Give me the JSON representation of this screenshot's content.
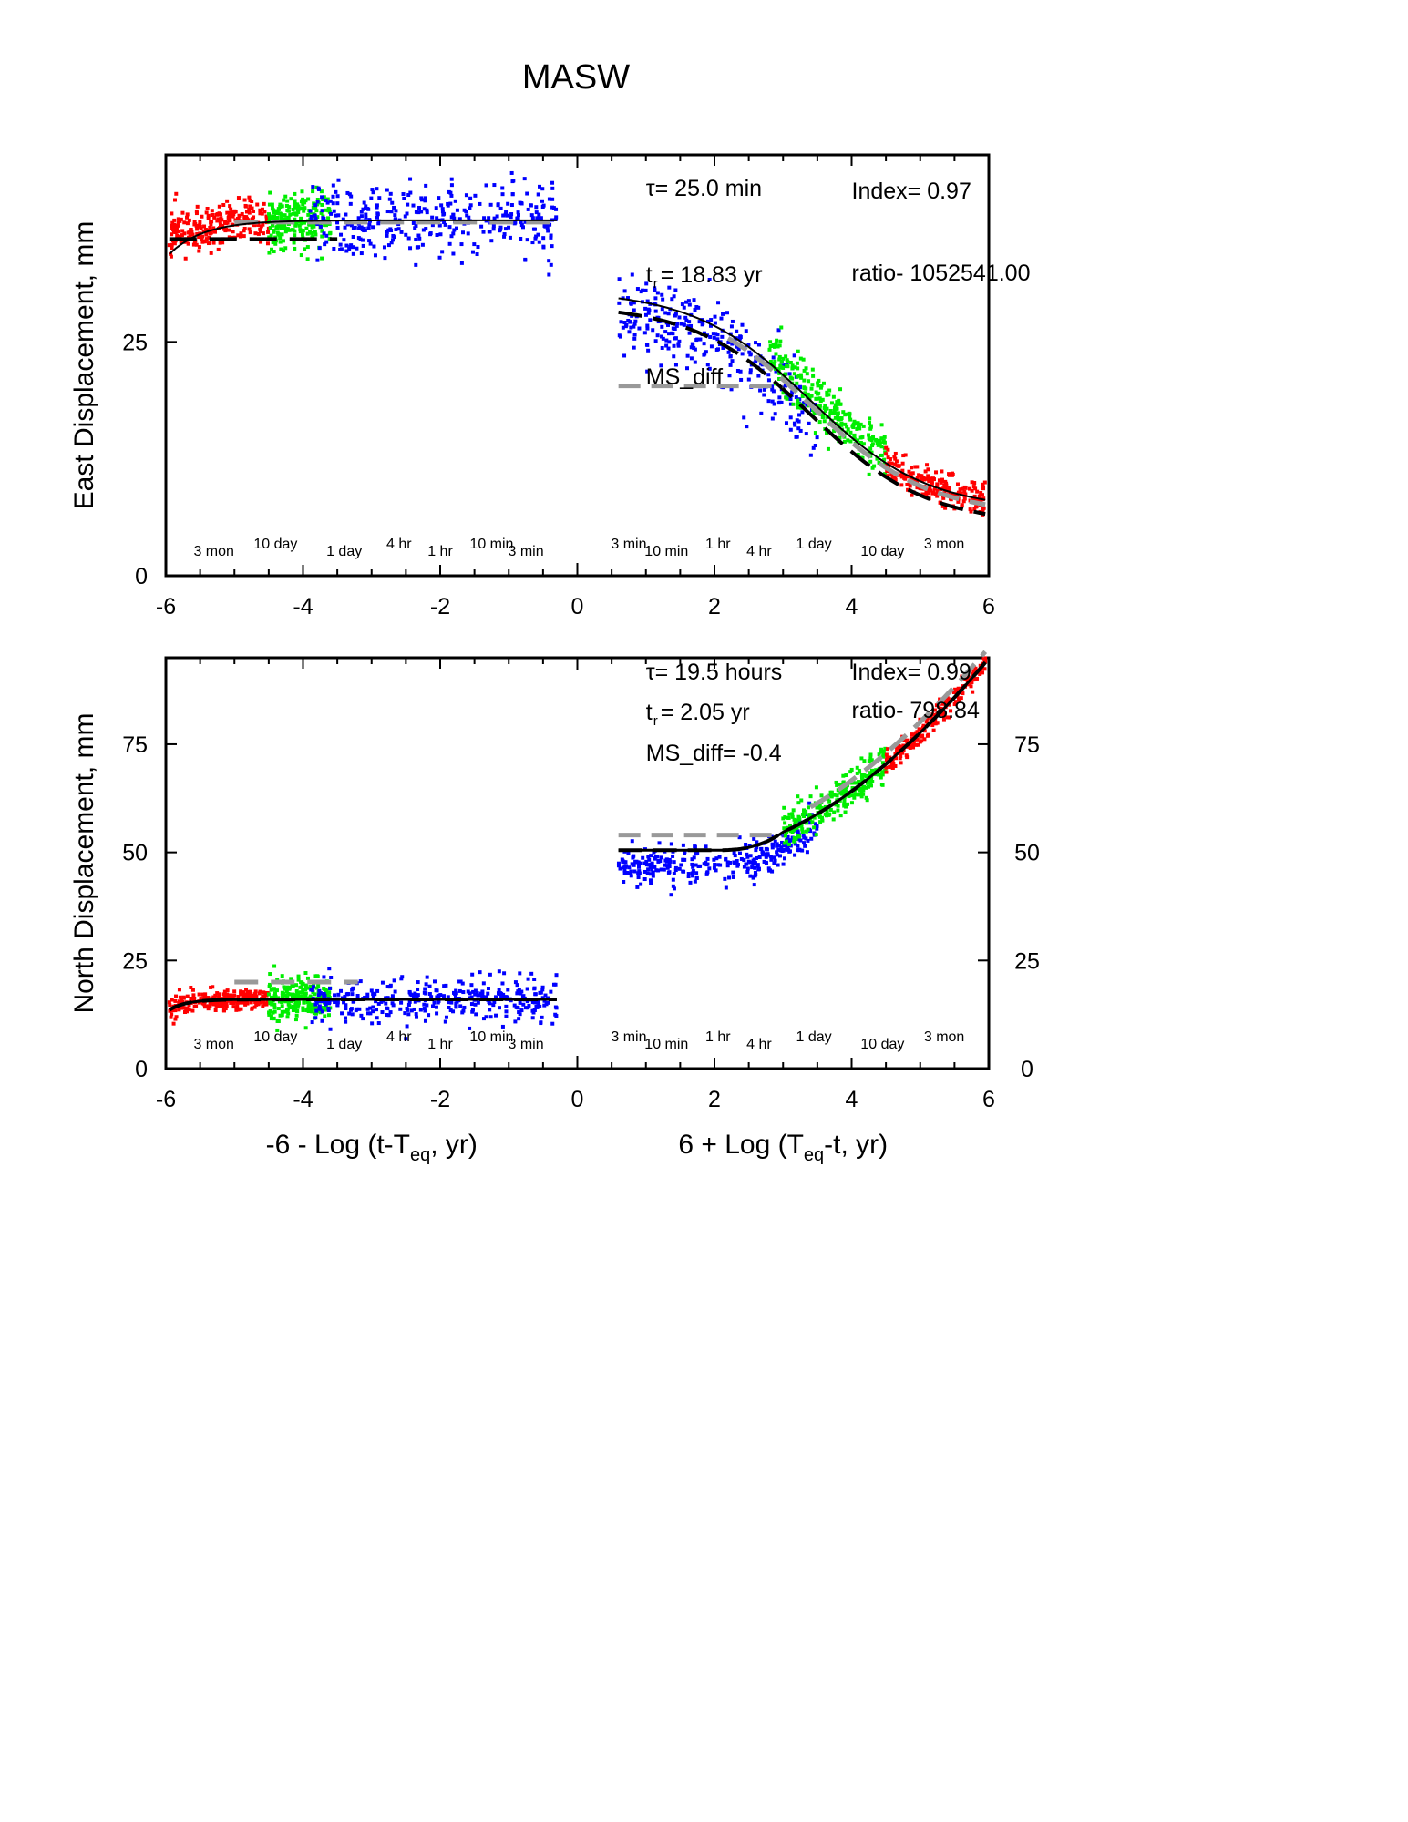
{
  "title": "MASW",
  "colors": {
    "points": [
      "#ff0000",
      "#00ee00",
      "#0000ff"
    ],
    "fit_black": "#000000",
    "fit_gray": "#999999"
  },
  "chart_data": [
    {
      "type": "scatter",
      "name": "east",
      "ylabel": "East Displacement, mm",
      "xlim": [
        -6,
        6
      ],
      "ylim": [
        0,
        45
      ],
      "x_ticks": [
        -6,
        -4,
        -2,
        0,
        2,
        4,
        6
      ],
      "y_ticks_left": [
        0,
        25
      ],
      "y_ticks_right": [],
      "annotations": {
        "tau": "τ= 25.0 min",
        "index": "Index= 0.97",
        "tr_prefix": "t",
        "tr_sub": "r",
        "tr_value": "= 18.83 yr",
        "ratio": "ratio- 1052541.00",
        "ms_diff": "MS_diff"
      },
      "time_labels": [
        {
          "x": -5.3,
          "text": "3 mon"
        },
        {
          "x": -4.4,
          "text": "10 day"
        },
        {
          "x": -3.4,
          "text": "1 day"
        },
        {
          "x": -2.6,
          "text": "4 hr"
        },
        {
          "x": -2.0,
          "text": "1 hr"
        },
        {
          "x": -1.25,
          "text": "10 min"
        },
        {
          "x": -0.75,
          "text": "3 min"
        },
        {
          "x": 0.75,
          "text": "3 min"
        },
        {
          "x": 1.3,
          "text": "10 min"
        },
        {
          "x": 2.05,
          "text": "1 hr"
        },
        {
          "x": 2.65,
          "text": "4 hr"
        },
        {
          "x": 3.45,
          "text": "1 day"
        },
        {
          "x": 4.45,
          "text": "10 day"
        },
        {
          "x": 5.35,
          "text": "3 mon"
        }
      ],
      "fit_left": {
        "a": 36,
        "b": 38,
        "tau": 0.45
      },
      "fit_right": {
        "low": 7,
        "high": 30.5,
        "mid": 3.4,
        "width": 0.85
      },
      "dashed_left_y": 36,
      "gray_left_y": 37.8,
      "ms_diff_gray_y": 20.3,
      "scatter_groups": [
        {
          "color": 0,
          "x0": -5.95,
          "x1": -4.5,
          "n": 260,
          "seed": 11,
          "noise": 1.2,
          "curve": "left"
        },
        {
          "color": 1,
          "x0": -4.5,
          "x1": -3.6,
          "n": 230,
          "seed": 12,
          "noise": 1.6,
          "curve": "left"
        },
        {
          "color": 2,
          "x0": -3.9,
          "x1": -0.3,
          "n": 360,
          "seed": 13,
          "noise": 2.0,
          "curve": "left"
        },
        {
          "color": 2,
          "x0": 0.6,
          "x1": 3.5,
          "n": 320,
          "seed": 14,
          "noise": 2.2,
          "curve": "right",
          "offset": -1.5
        },
        {
          "color": 1,
          "x0": 2.8,
          "x1": 4.5,
          "n": 260,
          "seed": 15,
          "noise": 1.4,
          "curve": "right",
          "offset": 1.0
        },
        {
          "color": 0,
          "x0": 4.5,
          "x1": 5.95,
          "n": 210,
          "seed": 16,
          "noise": 0.9,
          "curve": "right",
          "offset": 0.0
        }
      ]
    },
    {
      "type": "scatter",
      "name": "north",
      "ylabel": "North Displacement, mm",
      "xlabel_left": "-6 - Log (t-T",
      "xlabel_left_sub": "eq",
      "xlabel_left_tail": ", yr)",
      "xlabel_right": "6 + Log (T",
      "xlabel_right_sub": "eq",
      "xlabel_right_tail": "-t, yr)",
      "xlim": [
        -6,
        6
      ],
      "ylim": [
        0,
        95
      ],
      "x_ticks": [
        -6,
        -4,
        -2,
        0,
        2,
        4,
        6
      ],
      "y_ticks_left": [
        0,
        25,
        50,
        75
      ],
      "y_ticks_right": [
        0,
        25,
        50,
        75
      ],
      "annotations": {
        "tau": "τ= 19.5 hours",
        "index": "Index= 0.99",
        "tr_prefix": "t",
        "tr_sub": "r",
        "tr_value": "= 2.05 yr",
        "ratio": "ratio- 798.84",
        "ms_diff": "MS_diff= -0.4"
      },
      "time_labels": [
        {
          "x": -5.3,
          "text": "3 mon"
        },
        {
          "x": -4.4,
          "text": "10 day"
        },
        {
          "x": -3.4,
          "text": "1 day"
        },
        {
          "x": -2.6,
          "text": "4 hr"
        },
        {
          "x": -2.0,
          "text": "1 hr"
        },
        {
          "x": -1.25,
          "text": "10 min"
        },
        {
          "x": -0.75,
          "text": "3 min"
        },
        {
          "x": 0.75,
          "text": "3 min"
        },
        {
          "x": 1.3,
          "text": "10 min"
        },
        {
          "x": 2.05,
          "text": "1 hr"
        },
        {
          "x": 2.65,
          "text": "4 hr"
        },
        {
          "x": 3.45,
          "text": "1 day"
        },
        {
          "x": 4.45,
          "text": "10 day"
        },
        {
          "x": 5.35,
          "text": "3 mon"
        }
      ],
      "fit_left": {
        "a": 13,
        "b": 16,
        "tau": 0.25
      },
      "fit_right": {
        "base": 50.5,
        "start": 2.0,
        "k": 4.2,
        "p": 1.7
      },
      "gray_left_y": 20,
      "gray_right_y": 54,
      "scatter_groups": [
        {
          "color": 0,
          "x0": -5.95,
          "x1": -4.5,
          "n": 260,
          "seed": 21,
          "noise": 1.2,
          "curve": "left"
        },
        {
          "color": 1,
          "x0": -4.5,
          "x1": -3.6,
          "n": 230,
          "seed": 22,
          "noise": 2.4,
          "curve": "left"
        },
        {
          "color": 2,
          "x0": -3.9,
          "x1": -0.3,
          "n": 360,
          "seed": 23,
          "noise": 2.5,
          "curve": "left"
        },
        {
          "color": 2,
          "x0": 0.6,
          "x1": 3.5,
          "n": 320,
          "seed": 24,
          "noise": 2.3,
          "curve": "right",
          "offset": -3.5
        },
        {
          "color": 1,
          "x0": 3.0,
          "x1": 4.5,
          "n": 240,
          "seed": 25,
          "noise": 2.2,
          "curve": "right",
          "offset": 0.5
        },
        {
          "color": 0,
          "x0": 4.5,
          "x1": 5.95,
          "n": 200,
          "seed": 26,
          "noise": 1.4,
          "curve": "right",
          "offset": 0.0
        }
      ]
    }
  ]
}
